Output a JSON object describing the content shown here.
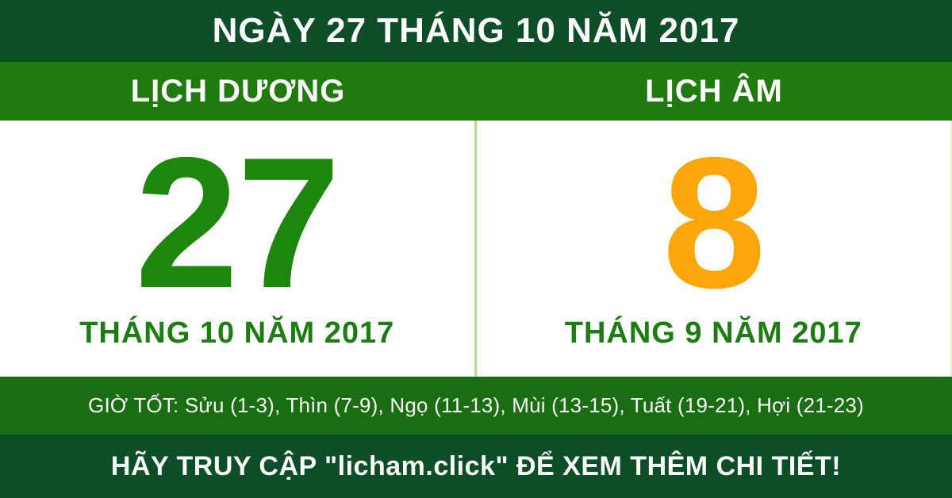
{
  "header": {
    "title": "NGÀY 27 THÁNG 10 NĂM 2017"
  },
  "calendar": {
    "solar": {
      "label": "LỊCH DƯƠNG",
      "day": "27",
      "month_year": "THÁNG 10 NĂM 2017"
    },
    "lunar": {
      "label": "LỊCH ÂM",
      "day": "8",
      "month_year": "THÁNG 9 NĂM 2017"
    }
  },
  "good_hours": {
    "text": "GIỜ TỐT: Sửu (1-3), Thìn (7-9), Ngọ (11-13), Mùi (13-15), Tuất (19-21), Hợi (21-23)"
  },
  "footer": {
    "text": "HÃY TRUY CẬP \"licham.click\" ĐỂ XEM THÊM CHI TIẾT!"
  },
  "colors": {
    "dark_green": "#0d4d27",
    "band_green": "#1f7a10",
    "hours_band_green": "#1a6d13",
    "solar_day_green": "#1e860c",
    "month_text_green": "#1e7d12",
    "lunar_day_orange": "#ffa60a",
    "divider_light_green": "#b9d98b",
    "white": "#ffffff"
  }
}
